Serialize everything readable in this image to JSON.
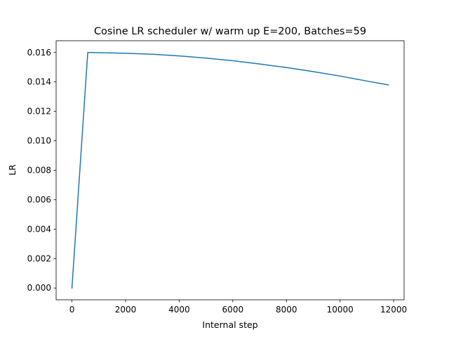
{
  "chart_data": {
    "type": "line",
    "title": "Cosine LR scheduler w/ warm up E=200, Batches=59",
    "xlabel": "Internal step",
    "ylabel": "LR",
    "xlim": [
      -590,
      12390
    ],
    "ylim": [
      -0.0008,
      0.0168
    ],
    "xticks": [
      0,
      2000,
      4000,
      6000,
      8000,
      10000,
      12000
    ],
    "xtick_labels": [
      "0",
      "2000",
      "4000",
      "6000",
      "8000",
      "10000",
      "12000"
    ],
    "yticks": [
      0.0,
      0.002,
      0.004,
      0.006,
      0.008,
      0.01,
      0.012,
      0.014,
      0.016
    ],
    "ytick_labels": [
      "0.000",
      "0.002",
      "0.004",
      "0.006",
      "0.008",
      "0.010",
      "0.012",
      "0.014",
      "0.016"
    ],
    "grid": false,
    "series": [
      {
        "color": "#1f77b4",
        "x": [
          0,
          590,
          2000,
          3000,
          4000,
          5000,
          6000,
          7000,
          8000,
          9000,
          10000,
          11000,
          11800
        ],
        "y": [
          0.0,
          0.016,
          0.01595,
          0.01588,
          0.01577,
          0.01562,
          0.01544,
          0.01522,
          0.01498,
          0.0147,
          0.0144,
          0.01406,
          0.0138
        ]
      }
    ]
  }
}
